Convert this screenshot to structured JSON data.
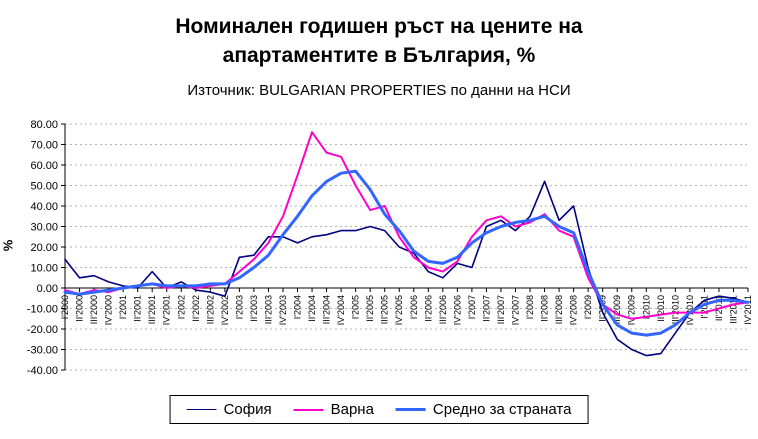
{
  "title_lines": [
    "Номинален годишен ръст на цените на",
    "апартаментите в България, %"
  ],
  "subtitle": "Източник: BULGARIAN PROPERTIES по данни на НСИ",
  "chart_data": {
    "type": "line",
    "title": "Номинален годишен ръст на цените на апартаментите в България, %",
    "subtitle": "Източник: BULGARIAN PROPERTIES по данни на НСИ",
    "xlabel": "",
    "ylabel": "%",
    "ylim": [
      -40,
      80
    ],
    "ytick_step": 10,
    "yticks": [
      "80.00",
      "70.00",
      "60.00",
      "50.00",
      "40.00",
      "30.00",
      "20.00",
      "10.00",
      "0.00",
      "-10.00",
      "-20.00",
      "-30.00",
      "-40.00"
    ],
    "grid": "horizontal-dashed",
    "legend_position": "bottom",
    "x_axis_crosses_at": 0,
    "categories": [
      "I'2000",
      "II'2000",
      "III'2000",
      "IV'2000",
      "I'2001",
      "II'2001",
      "III'2001",
      "IV'2001",
      "I'2002",
      "II'2002",
      "III'2002",
      "IV'2002",
      "I'2003",
      "II'2003",
      "III'2003",
      "IV'2003",
      "I'2004",
      "II'2004",
      "III'2004",
      "IV'2004",
      "I'2005",
      "II'2005",
      "III'2005",
      "IV'2005",
      "I'2006",
      "II'2006",
      "III'2006",
      "IV'2006",
      "I'2007",
      "II'2007",
      "III'2007",
      "IV'2007",
      "I'2008",
      "II'2008",
      "III'2008",
      "IV'2008",
      "I'2009",
      "II'2009",
      "III'2009",
      "IV'2009",
      "I'2010",
      "II'2010",
      "III'2010",
      "IV'2010",
      "I'2011",
      "II'2011",
      "III'2011",
      "IV'2011"
    ],
    "series": [
      {
        "name": "София",
        "color": "#000080",
        "width": 1.6,
        "values": [
          14,
          5,
          6,
          3,
          1,
          0,
          8,
          0,
          3,
          -1,
          -2,
          -4,
          15,
          16,
          25,
          25,
          22,
          25,
          26,
          28,
          28,
          30,
          28,
          20,
          17,
          8,
          5,
          12,
          10,
          30,
          33,
          28,
          35,
          52,
          33,
          40,
          10,
          -12,
          -25,
          -30,
          -33,
          -32,
          -22,
          -12,
          -6,
          -4,
          -5,
          -7
        ]
      },
      {
        "name": "Варна",
        "color": "#FF00CC",
        "width": 2,
        "values": [
          -1,
          -3,
          -1,
          -2,
          0,
          1,
          2,
          0,
          1,
          0,
          1,
          2,
          8,
          14,
          22,
          35,
          55,
          76,
          66,
          64,
          50,
          38,
          40,
          25,
          15,
          10,
          8,
          13,
          25,
          33,
          35,
          30,
          32,
          36,
          28,
          25,
          5,
          -8,
          -13,
          -15,
          -14,
          -13,
          -12,
          -12,
          -12,
          -10,
          -8,
          -7
        ]
      },
      {
        "name": "Средно за страната",
        "color": "#3366FF",
        "width": 3,
        "values": [
          -2,
          -3,
          -2,
          -1,
          0,
          1,
          2,
          1,
          1,
          1,
          2,
          2,
          5,
          10,
          16,
          26,
          35,
          45,
          52,
          56,
          57,
          48,
          36,
          28,
          18,
          13,
          12,
          15,
          22,
          27,
          30,
          32,
          33,
          35,
          30,
          27,
          8,
          -8,
          -18,
          -22,
          -23,
          -22,
          -18,
          -12,
          -8,
          -6,
          -6,
          -7
        ]
      }
    ]
  }
}
